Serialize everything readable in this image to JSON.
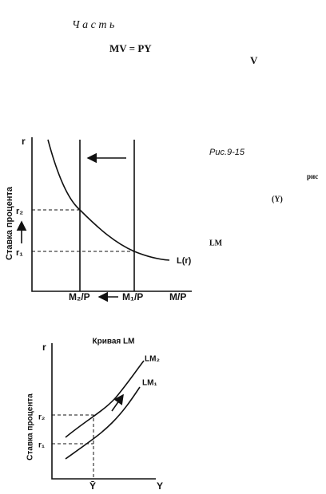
{
  "header": {
    "title": "Ч а с т ь"
  },
  "text": {
    "formula": "MV = PY",
    "v": "V",
    "caption": "Рис.9-15",
    "fragment": "рис",
    "y_note": "(Y)",
    "lm": "LM"
  },
  "figure1": {
    "y_axis": "r",
    "y_title": "Ставка процента",
    "r2": "r₂",
    "r1": "r₁",
    "curve": "L(r)",
    "m2": "M₂/P",
    "m1": "M₁/P",
    "x_axis": "M/P"
  },
  "figure2": {
    "title": "Кривая LM",
    "y_axis": "r",
    "y_title": "Ставка процента",
    "lm2": "LM₂",
    "lm1": "LM₁",
    "r2": "r₂",
    "r1": "r₁",
    "y_bar": "Ȳ",
    "x_axis": "Y"
  }
}
